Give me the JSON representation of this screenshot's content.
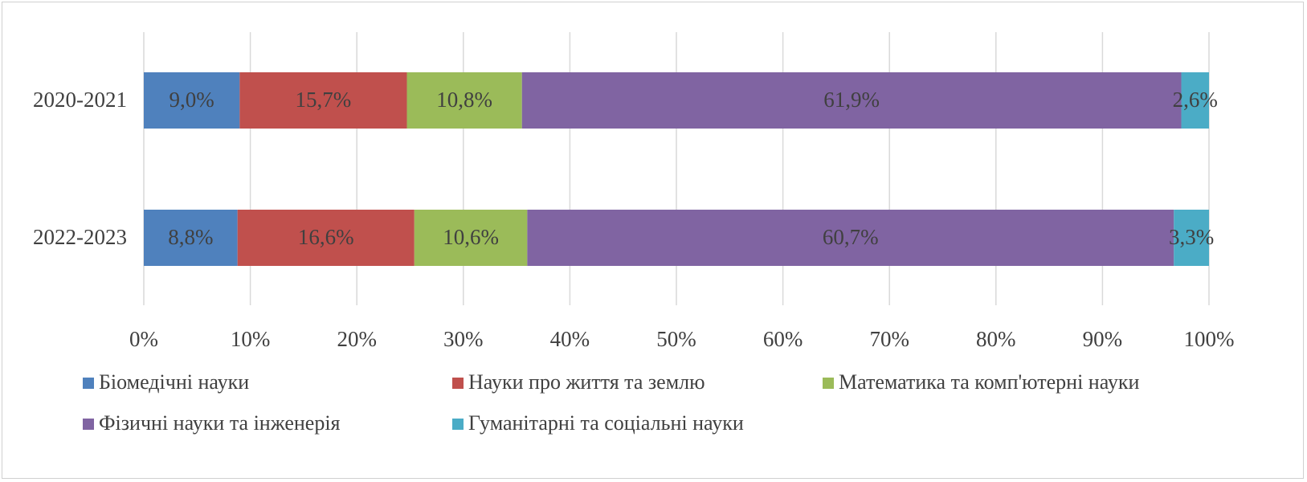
{
  "chart_data": {
    "type": "bar",
    "orientation": "horizontal",
    "stacked": "percent",
    "categories": [
      "2020-2021",
      "2022-2023"
    ],
    "series": [
      {
        "name": "Біомедічні науки",
        "color": "#4f81bd",
        "values": [
          9.0,
          8.8
        ],
        "labels": [
          "9,0%",
          "8,8%"
        ]
      },
      {
        "name": "Науки про життя та землю",
        "color": "#c0504d",
        "values": [
          15.7,
          16.6
        ],
        "labels": [
          "15,7%",
          "16,6%"
        ]
      },
      {
        "name": "Математика та комп'ютерні науки",
        "color": "#9bbb59",
        "values": [
          10.8,
          10.6
        ],
        "labels": [
          "10,8%",
          "10,6%"
        ]
      },
      {
        "name": "Фізичні науки та інженерія",
        "color": "#8064a2",
        "values": [
          61.9,
          60.7
        ],
        "labels": [
          "61,9%",
          "60,7%"
        ]
      },
      {
        "name": "Гуманітарні та соціальні науки",
        "color": "#4bacc6",
        "values": [
          2.6,
          3.3
        ],
        "labels": [
          "2,6%",
          "3,3%"
        ]
      }
    ],
    "xlim": [
      0,
      100
    ],
    "xticks": [
      "0%",
      "10%",
      "20%",
      "30%",
      "40%",
      "50%",
      "60%",
      "70%",
      "80%",
      "90%",
      "100%"
    ],
    "grid": true,
    "legend_position": "bottom",
    "title": "",
    "xlabel": "",
    "ylabel": ""
  }
}
